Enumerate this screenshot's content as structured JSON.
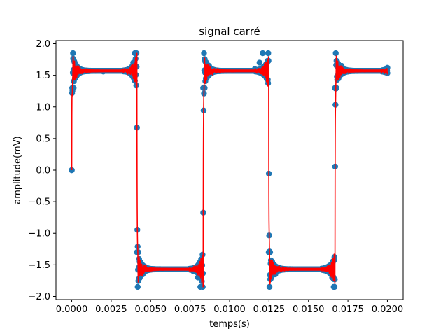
{
  "chart_data": {
    "type": "line",
    "title": "signal carré",
    "xlabel": "temps(s)",
    "ylabel": "amplitude(mV)",
    "xlim": [
      -0.001,
      0.021
    ],
    "ylim": [
      -2.05,
      2.05
    ],
    "x_ticks": [
      0.0,
      0.0025,
      0.005,
      0.0075,
      0.01,
      0.0125,
      0.015,
      0.0175,
      0.02
    ],
    "x_tick_labels": [
      "0.0000",
      "0.0025",
      "0.0050",
      "0.0075",
      "0.0100",
      "0.0125",
      "0.0150",
      "0.0175",
      "0.0200"
    ],
    "y_ticks": [
      -2.0,
      -1.5,
      -1.0,
      -0.5,
      0.0,
      0.5,
      1.0,
      1.5,
      2.0
    ],
    "y_tick_labels": [
      "−2.0",
      "−1.5",
      "−1.0",
      "−0.5",
      "0.0",
      "0.5",
      "1.0",
      "1.5",
      "2.0"
    ],
    "grid": false,
    "legend": "none",
    "series": [
      {
        "style": "markers",
        "color": "#1f77b4",
        "x": [
          0.0,
          3e-05,
          8e-05,
          0.00012,
          0.00016,
          0.0002,
          0.0003,
          0.0005,
          0.001,
          0.002,
          0.003,
          0.0037,
          0.0039,
          0.004,
          0.0041,
          0.00413,
          0.00418,
          0.00422,
          0.00426,
          0.0043,
          0.0045,
          0.005,
          0.006,
          0.007,
          0.0077,
          0.008,
          0.00815,
          0.0083,
          0.00833,
          0.00838,
          0.00842,
          0.00846,
          0.0085,
          0.0087,
          0.009,
          0.01,
          0.011,
          0.0116,
          0.0119,
          0.0121,
          0.01245,
          0.01248,
          0.01253,
          0.01257,
          0.01261,
          0.0127,
          0.0129,
          0.013,
          0.014,
          0.015,
          0.016,
          0.0163,
          0.0165,
          0.0166,
          0.01665,
          0.01668,
          0.01673,
          0.01677,
          0.01681,
          0.0169,
          0.0171,
          0.0175,
          0.018,
          0.019,
          0.02
        ],
        "y": [
          0.0,
          1.3,
          1.85,
          1.3,
          1.72,
          1.45,
          1.65,
          1.57,
          1.57,
          1.56,
          1.57,
          1.6,
          1.7,
          1.85,
          1.85,
          -1.3,
          -1.85,
          -1.3,
          -1.72,
          -1.45,
          -1.65,
          -1.57,
          -1.57,
          -1.57,
          -1.6,
          -1.7,
          -1.85,
          -1.85,
          1.3,
          1.85,
          1.3,
          1.72,
          1.45,
          1.65,
          1.57,
          1.57,
          1.57,
          1.6,
          1.7,
          1.85,
          1.85,
          -1.3,
          -1.85,
          -1.3,
          -1.72,
          -1.45,
          -1.65,
          -1.57,
          -1.57,
          -1.57,
          -1.57,
          -1.6,
          -1.7,
          -1.85,
          -1.85,
          1.3,
          1.85,
          1.3,
          1.72,
          1.45,
          1.65,
          1.57,
          1.57,
          1.57,
          1.62
        ]
      },
      {
        "style": "line",
        "color": "#ff0000",
        "description_hint": "dense oscillating trace"
      }
    ]
  }
}
